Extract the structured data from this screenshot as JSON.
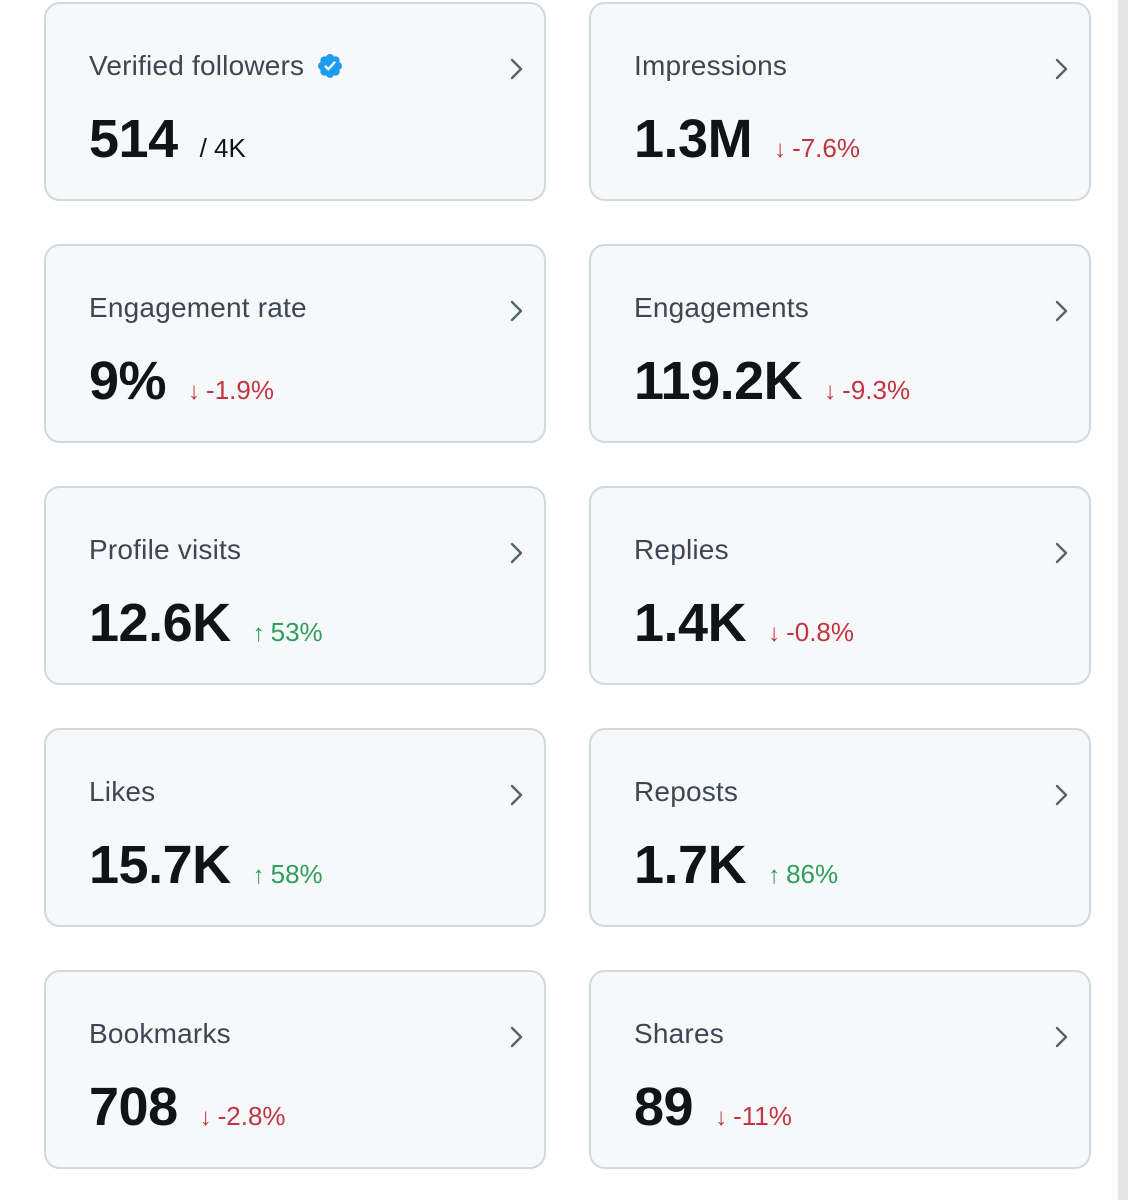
{
  "cards": [
    {
      "label": "Verified followers",
      "value": "514",
      "total": "/ 4K",
      "verified_icon": "verified-badge-icon",
      "accent": "#1d9bf0"
    },
    {
      "label": "Impressions",
      "value": "1.3M",
      "change": "-7.6%",
      "direction": "down",
      "arrow": "↓"
    },
    {
      "label": "Engagement rate",
      "value": "9%",
      "change": "-1.9%",
      "direction": "down",
      "arrow": "↓"
    },
    {
      "label": "Engagements",
      "value": "119.2K",
      "change": "-9.3%",
      "direction": "down",
      "arrow": "↓"
    },
    {
      "label": "Profile visits",
      "value": "12.6K",
      "change": "53%",
      "direction": "up",
      "arrow": "↑"
    },
    {
      "label": "Replies",
      "value": "1.4K",
      "change": "-0.8%",
      "direction": "down",
      "arrow": "↓"
    },
    {
      "label": "Likes",
      "value": "15.7K",
      "change": "58%",
      "direction": "up",
      "arrow": "↑"
    },
    {
      "label": "Reposts",
      "value": "1.7K",
      "change": "86%",
      "direction": "up",
      "arrow": "↑"
    },
    {
      "label": "Bookmarks",
      "value": "708",
      "change": "-2.8%",
      "direction": "down",
      "arrow": "↓"
    },
    {
      "label": "Shares",
      "value": "89",
      "change": "-11%",
      "direction": "down",
      "arrow": "↓"
    }
  ],
  "colors": {
    "down": "#c0353f",
    "up": "#2e9e5b",
    "card_bg": "#f7f8fa",
    "card_border": "#cfd9de"
  }
}
